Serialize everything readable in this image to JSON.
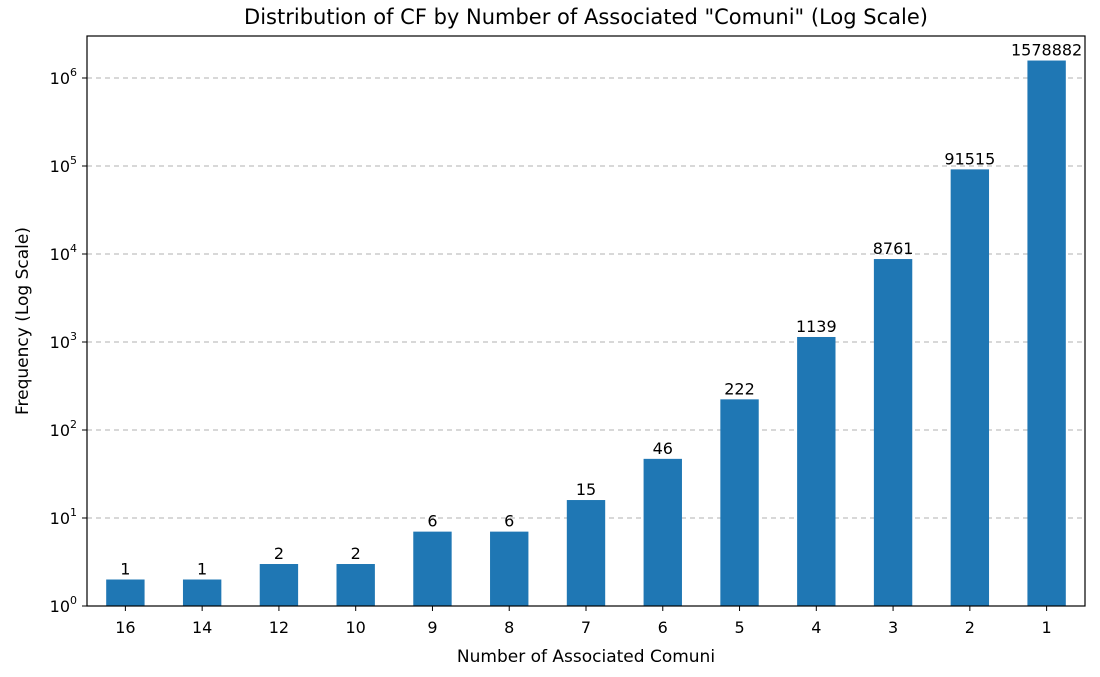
{
  "chart_data": {
    "type": "bar",
    "title": "Distribution of CF by Number of Associated \"Comuni\" (Log Scale)",
    "xlabel": "Number of Associated Comuni",
    "ylabel": "Frequency (Log Scale)",
    "y_scale": "log",
    "ylim": [
      1,
      3000000
    ],
    "y_ticks": [
      1,
      10,
      100,
      1000,
      10000,
      100000,
      1000000
    ],
    "grid": "y-dashed",
    "categories": [
      "16",
      "14",
      "12",
      "10",
      "9",
      "8",
      "7",
      "6",
      "5",
      "4",
      "3",
      "2",
      "1"
    ],
    "values": [
      1,
      1,
      2,
      2,
      6,
      6,
      15,
      46,
      222,
      1139,
      8761,
      91515,
      1578882
    ],
    "bar_color": "#1f77b4"
  }
}
